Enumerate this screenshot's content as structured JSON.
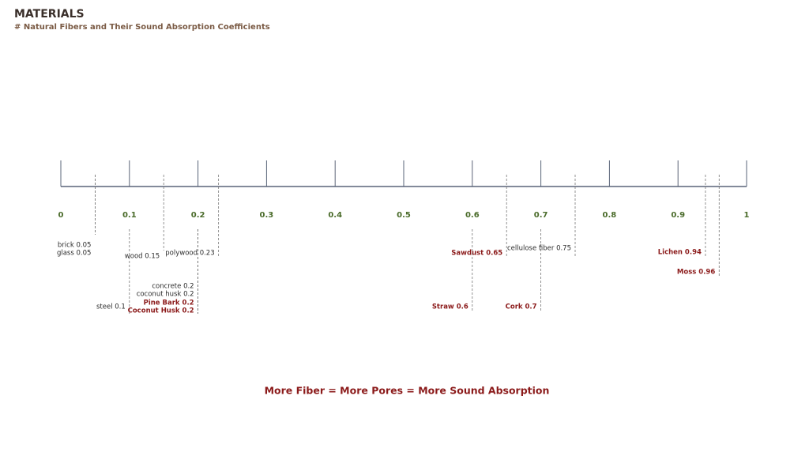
{
  "chart_data": {
    "type": "numberline",
    "title": "MATERIALS",
    "subtitle": "# Natural Fibers and Their Sound Absorption Coefficients",
    "xlim": [
      0,
      1
    ],
    "xticks": [
      0,
      0.1,
      0.2,
      0.3,
      0.4,
      0.5,
      0.6,
      0.7,
      0.8,
      0.9,
      1
    ],
    "items": [
      {
        "label": "brick 0.05",
        "value": 0.05,
        "highlight": false
      },
      {
        "label": "glass 0.05",
        "value": 0.05,
        "highlight": false
      },
      {
        "label": "wood 0.15",
        "value": 0.15,
        "highlight": false
      },
      {
        "label": "polywood 0.23",
        "value": 0.23,
        "highlight": false
      },
      {
        "label": "steel 0.1",
        "value": 0.1,
        "highlight": false
      },
      {
        "label": "concrete 0.2",
        "value": 0.2,
        "highlight": false
      },
      {
        "label": "coconut husk 0.2",
        "value": 0.2,
        "highlight": false
      },
      {
        "label": "cellulose fiber 0.75",
        "value": 0.75,
        "highlight": false
      },
      {
        "label": "Pine Bark 0.2",
        "value": 0.2,
        "highlight": true
      },
      {
        "label": "Coconut Husk 0.2",
        "value": 0.2,
        "highlight": true
      },
      {
        "label": "Sawdust 0.65",
        "value": 0.65,
        "highlight": true
      },
      {
        "label": "Straw 0.6",
        "value": 0.6,
        "highlight": true
      },
      {
        "label": "Cork 0.7",
        "value": 0.7,
        "highlight": true
      },
      {
        "label": "Lichen 0.94",
        "value": 0.94,
        "highlight": true
      },
      {
        "label": "Moss 0.96",
        "value": 0.96,
        "highlight": true
      }
    ],
    "colors": {
      "axis": "#5a6478",
      "tick_label": "#4a6b2a",
      "text": "#2b2b2b",
      "highlight": "#8b1a1a"
    },
    "footer": "More Fiber = More Pores = More Sound Absorption"
  }
}
